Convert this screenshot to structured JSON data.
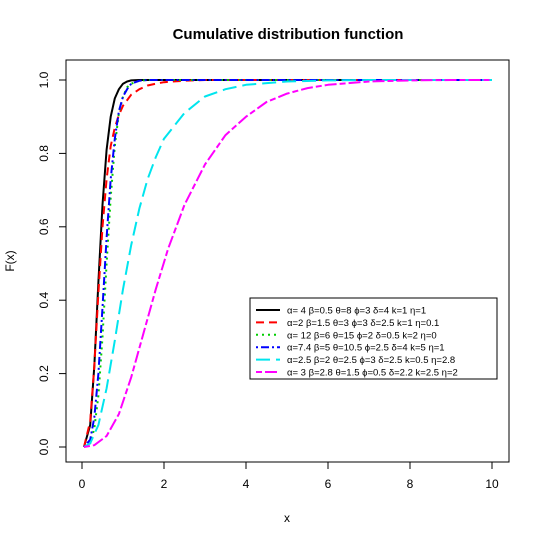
{
  "chart_data": {
    "type": "line",
    "title": "Cumulative distribution function",
    "xlabel": "x",
    "ylabel": "F(x)",
    "xlim": [
      0,
      10
    ],
    "ylim": [
      0,
      1
    ],
    "x_ticks": [
      "0",
      "2",
      "4",
      "6",
      "8",
      "10"
    ],
    "y_ticks": [
      "0.0",
      "0.2",
      "0.4",
      "0.6",
      "0.8",
      "1.0"
    ],
    "grid": false,
    "legend_position": "center-right",
    "series": [
      {
        "name": "α= 4  β=0.5  θ=8  ϕ=3  δ=4  k=1  η=1",
        "color": "#000000",
        "dash": "solid",
        "x": [
          0.05,
          0.2,
          0.3,
          0.4,
          0.5,
          0.6,
          0.7,
          0.8,
          0.9,
          1.0,
          1.1,
          1.2,
          1.4,
          1.6,
          10
        ],
        "y": [
          0.0,
          0.06,
          0.22,
          0.45,
          0.66,
          0.81,
          0.9,
          0.95,
          0.975,
          0.99,
          0.996,
          0.999,
          1.0,
          1.0,
          1.0
        ]
      },
      {
        "name": "α=2  β=1.5  θ=3  ϕ=3  δ=2.5  k=1  η=0.1",
        "color": "#ff0000",
        "dash": "dashed",
        "x": [
          0.05,
          0.2,
          0.3,
          0.4,
          0.5,
          0.6,
          0.7,
          0.8,
          0.9,
          1.0,
          1.2,
          1.4,
          1.6,
          1.8,
          2.0,
          2.5,
          3.0,
          10
        ],
        "y": [
          0.0,
          0.07,
          0.22,
          0.42,
          0.6,
          0.73,
          0.82,
          0.87,
          0.905,
          0.93,
          0.96,
          0.975,
          0.985,
          0.99,
          0.994,
          0.998,
          1.0,
          1.0
        ]
      },
      {
        "name": "α= 12  β=6  θ=15  ϕ=2  δ=0.5  k=2  η=0",
        "color": "#00cd00",
        "dash": "dotted",
        "x": [
          0.05,
          0.2,
          0.3,
          0.4,
          0.5,
          0.6,
          0.7,
          0.8,
          0.9,
          1.0,
          1.1,
          1.2,
          1.4,
          1.6,
          1.8,
          10
        ],
        "y": [
          0.0,
          0.01,
          0.05,
          0.14,
          0.3,
          0.5,
          0.68,
          0.82,
          0.91,
          0.955,
          0.98,
          0.99,
          0.998,
          1.0,
          1.0,
          1.0
        ]
      },
      {
        "name": "α=7.4  β=5  θ=10.5  ϕ=2.5  δ=4  k=5  η=1",
        "color": "#0000ff",
        "dash": "dotdash",
        "x": [
          0.05,
          0.2,
          0.3,
          0.4,
          0.5,
          0.6,
          0.7,
          0.8,
          0.9,
          1.0,
          1.1,
          1.2,
          1.4,
          1.6,
          1.8,
          10
        ],
        "y": [
          0.0,
          0.02,
          0.08,
          0.2,
          0.38,
          0.57,
          0.73,
          0.84,
          0.915,
          0.955,
          0.975,
          0.99,
          0.998,
          1.0,
          1.0,
          1.0
        ]
      },
      {
        "name": "α=2.5  β=2  θ=2.5  ϕ=3  δ=2.5  k=0.5  η=2.8",
        "color": "#00e5ee",
        "dash": "longdash",
        "x": [
          0.05,
          0.2,
          0.4,
          0.6,
          0.8,
          1.0,
          1.2,
          1.4,
          1.6,
          1.8,
          2.0,
          2.5,
          3.0,
          3.5,
          4.0,
          5.0,
          6.0,
          7.0,
          10
        ],
        "y": [
          0.0,
          0.01,
          0.06,
          0.16,
          0.29,
          0.43,
          0.55,
          0.65,
          0.73,
          0.79,
          0.84,
          0.91,
          0.955,
          0.975,
          0.987,
          0.996,
          0.999,
          1.0,
          1.0
        ]
      },
      {
        "name": "α= 3  β=2.8  θ=1.5  ϕ=0.5  δ=2.2  k=2.5  η=2",
        "color": "#ff00ff",
        "dash": "twodash",
        "x": [
          0.05,
          0.3,
          0.6,
          0.9,
          1.2,
          1.5,
          1.8,
          2.1,
          2.5,
          3.0,
          3.5,
          4.0,
          4.5,
          5.0,
          5.5,
          6.0,
          7.0,
          8.0,
          9.0,
          10.0
        ],
        "y": [
          0.0,
          0.005,
          0.03,
          0.09,
          0.19,
          0.31,
          0.43,
          0.54,
          0.66,
          0.77,
          0.85,
          0.9,
          0.94,
          0.963,
          0.978,
          0.987,
          0.996,
          0.999,
          1.0,
          1.0
        ]
      }
    ]
  }
}
